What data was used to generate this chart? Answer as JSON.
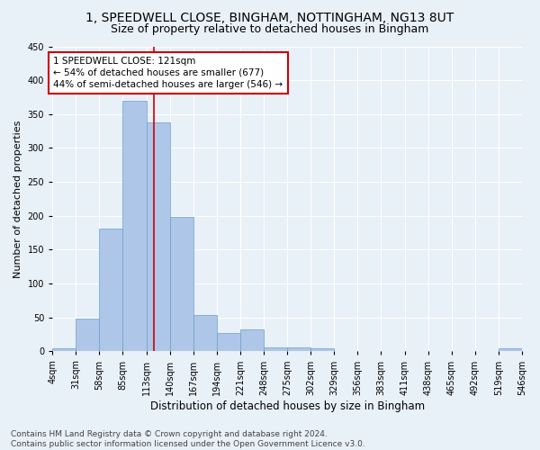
{
  "title_line1": "1, SPEEDWELL CLOSE, BINGHAM, NOTTINGHAM, NG13 8UT",
  "title_line2": "Size of property relative to detached houses in Bingham",
  "xlabel": "Distribution of detached houses by size in Bingham",
  "ylabel": "Number of detached properties",
  "bin_edges": [
    4,
    31,
    58,
    85,
    113,
    140,
    167,
    194,
    221,
    248,
    275,
    302,
    329,
    356,
    383,
    411,
    438,
    465,
    492,
    519,
    546
  ],
  "bin_counts": [
    5,
    49,
    181,
    370,
    338,
    199,
    54,
    27,
    33,
    6,
    6,
    5,
    0,
    0,
    0,
    0,
    0,
    0,
    0,
    5
  ],
  "bar_color": "#aec6e8",
  "bar_edge_color": "#6aa0cc",
  "vline_x": 121,
  "vline_color": "#cc0000",
  "annotation_line1": "1 SPEEDWELL CLOSE: 121sqm",
  "annotation_line2": "← 54% of detached houses are smaller (677)",
  "annotation_line3": "44% of semi-detached houses are larger (546) →",
  "annotation_box_color": "white",
  "annotation_box_edge_color": "#cc0000",
  "annotation_fontsize": 7.5,
  "background_color": "#e8f0f8",
  "grid_color": "white",
  "tick_labels": [
    "4sqm",
    "31sqm",
    "58sqm",
    "85sqm",
    "113sqm",
    "140sqm",
    "167sqm",
    "194sqm",
    "221sqm",
    "248sqm",
    "275sqm",
    "302sqm",
    "329sqm",
    "356sqm",
    "383sqm",
    "411sqm",
    "438sqm",
    "465sqm",
    "492sqm",
    "519sqm",
    "546sqm"
  ],
  "footnote": "Contains HM Land Registry data © Crown copyright and database right 2024.\nContains public sector information licensed under the Open Government Licence v3.0.",
  "ylim": [
    0,
    450
  ],
  "title_fontsize": 10,
  "subtitle_fontsize": 9,
  "xlabel_fontsize": 8.5,
  "ylabel_fontsize": 8,
  "tick_fontsize": 7,
  "footnote_fontsize": 6.5
}
